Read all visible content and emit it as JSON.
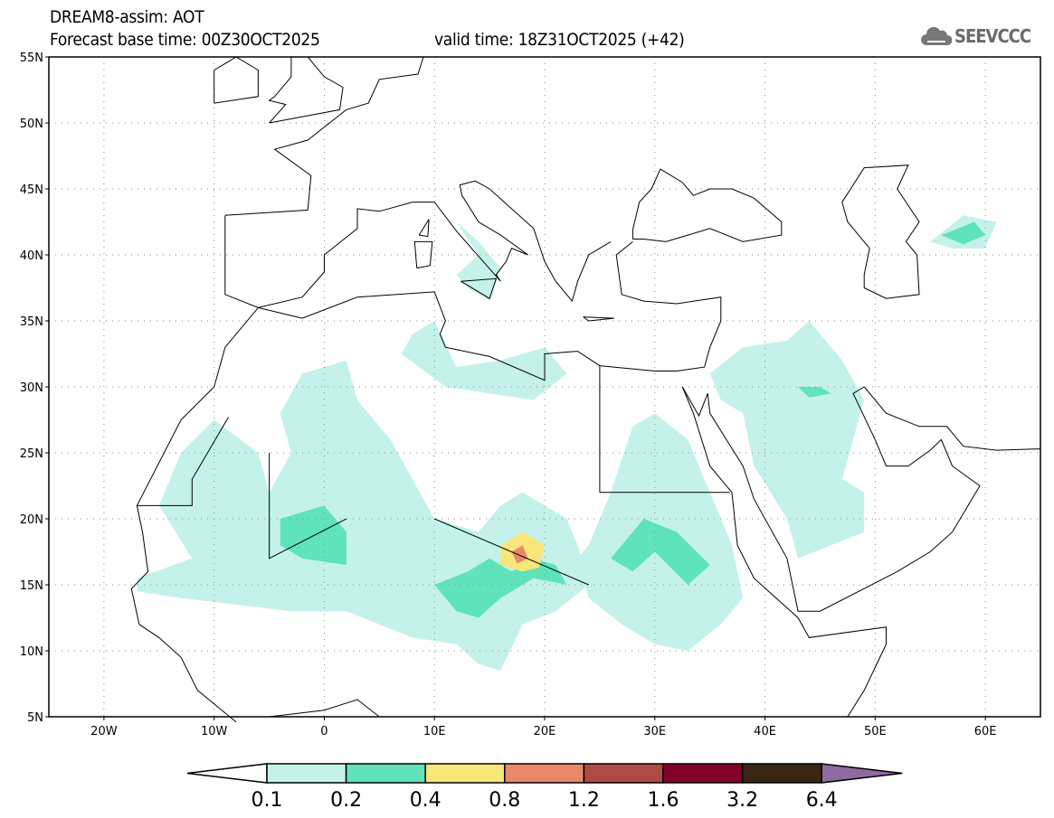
{
  "header": {
    "title": "DREAM8-assim: AOT",
    "base_time": "Forecast base time: 00Z30OCT2025",
    "valid_time": "valid time: 18Z31OCT2025 (+42)"
  },
  "logo": {
    "text": "SEEVCCC",
    "icon": "cloud-icon"
  },
  "map": {
    "lon_range": [
      -25,
      65
    ],
    "lat_range": [
      5,
      55
    ],
    "lat_labels": [
      {
        "v": 55,
        "t": "55N"
      },
      {
        "v": 50,
        "t": "50N"
      },
      {
        "v": 45,
        "t": "45N"
      },
      {
        "v": 40,
        "t": "40N"
      },
      {
        "v": 35,
        "t": "35N"
      },
      {
        "v": 30,
        "t": "30N"
      },
      {
        "v": 25,
        "t": "25N"
      },
      {
        "v": 20,
        "t": "20N"
      },
      {
        "v": 15,
        "t": "15N"
      },
      {
        "v": 10,
        "t": "10N"
      },
      {
        "v": 5,
        "t": "5N"
      }
    ],
    "lon_labels": [
      {
        "v": -20,
        "t": "20W"
      },
      {
        "v": -10,
        "t": "10W"
      },
      {
        "v": 0,
        "t": "0"
      },
      {
        "v": 10,
        "t": "10E"
      },
      {
        "v": 20,
        "t": "20E"
      },
      {
        "v": 30,
        "t": "30E"
      },
      {
        "v": 40,
        "t": "40E"
      },
      {
        "v": 50,
        "t": "50E"
      },
      {
        "v": 60,
        "t": "60E"
      }
    ]
  },
  "colorbar": {
    "levels": [
      "0.1",
      "0.2",
      "0.4",
      "0.8",
      "1.2",
      "1.6",
      "3.2",
      "6.4"
    ],
    "colors": [
      "#c4f2ea",
      "#5ee3bb",
      "#f7e67a",
      "#e9896a",
      "#ad4a42",
      "#850028",
      "#3a2412"
    ],
    "below_color": "#ffffff",
    "above_color": "#8e6a9e"
  }
}
